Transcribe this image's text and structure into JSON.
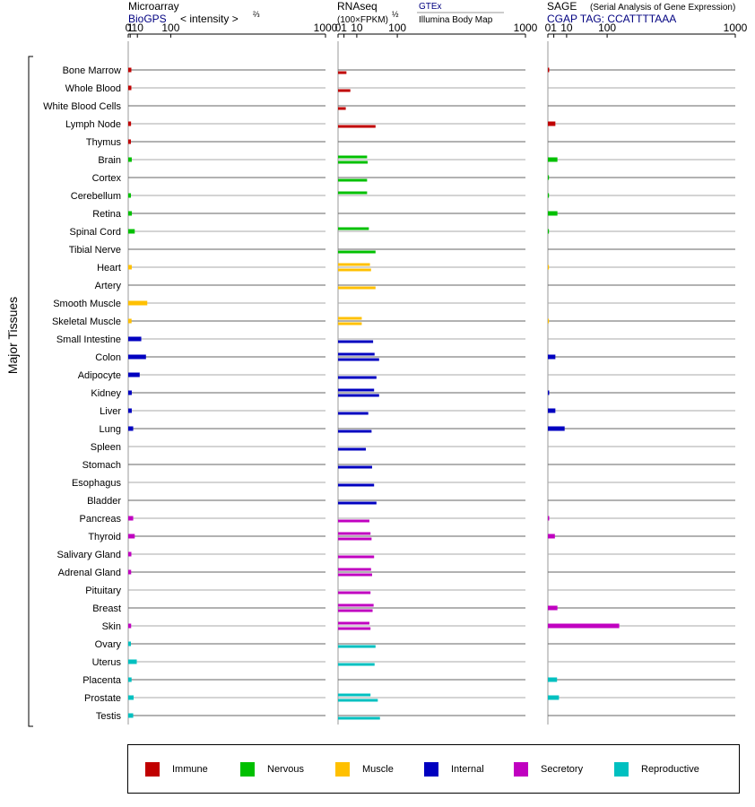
{
  "headers": {
    "micro_title": "Microarray",
    "micro_src": "BioGPS",
    "micro_units": "< intensity >",
    "micro_exp": "⅔",
    "rna_title": "RNAseq",
    "rna_units": "(100×FPKM)",
    "rna_exp": "½",
    "rna_src1": "GTEx",
    "rna_src2": "Illumina Body Map",
    "sage_title": "SAGE",
    "sage_sub": "(Serial Analysis of Gene Expression)",
    "sage_tag": "CGAP TAG: CCATTTTAAA"
  },
  "colors": {
    "Immune": "#c00000",
    "Nervous": "#00c000",
    "Muscle": "#ffc000",
    "Internal": "#0000c0",
    "Secretory": "#c000c0",
    "Reproductive": "#00c0c0",
    "title_blue": "#000080"
  },
  "chart_data": {
    "type": "bar",
    "y_axis_label": "Major Tissues",
    "categories": [
      "Bone Marrow",
      "Whole Blood",
      "White Blood Cells",
      "Lymph Node",
      "Thymus",
      "Brain",
      "Cortex",
      "Cerebellum",
      "Retina",
      "Spinal Cord",
      "Tibial Nerve",
      "Heart",
      "Artery",
      "Smooth Muscle",
      "Skeletal Muscle",
      "Small Intestine",
      "Colon",
      "Adipocyte",
      "Kidney",
      "Liver",
      "Lung",
      "Spleen",
      "Stomach",
      "Esophagus",
      "Bladder",
      "Pancreas",
      "Thyroid",
      "Salivary Gland",
      "Adrenal Gland",
      "Pituitary",
      "Breast",
      "Skin",
      "Ovary",
      "Uterus",
      "Placenta",
      "Prostate",
      "Testis"
    ],
    "groups": [
      "Immune",
      "Immune",
      "Immune",
      "Immune",
      "Immune",
      "Nervous",
      "Nervous",
      "Nervous",
      "Nervous",
      "Nervous",
      "Nervous",
      "Muscle",
      "Muscle",
      "Muscle",
      "Muscle",
      "Internal",
      "Internal",
      "Internal",
      "Internal",
      "Internal",
      "Internal",
      "Internal",
      "Internal",
      "Internal",
      "Internal",
      "Secretory",
      "Secretory",
      "Secretory",
      "Secretory",
      "Secretory",
      "Secretory",
      "Secretory",
      "Reproductive",
      "Reproductive",
      "Reproductive",
      "Reproductive",
      "Reproductive"
    ],
    "axis_ticks": [
      "0",
      "1",
      "10",
      "100",
      "1000"
    ],
    "microarray": [
      2,
      2,
      null,
      1.7,
      1.6,
      2.4,
      null,
      1.6,
      2.5,
      6,
      null,
      2.4,
      null,
      30,
      2.2,
      17,
      27,
      14,
      2.4,
      2.4,
      4,
      null,
      null,
      null,
      null,
      4,
      6,
      2,
      1.8,
      null,
      null,
      1.8,
      1.6,
      9,
      2.2,
      4.5,
      4
    ],
    "gtex": [
      null,
      null,
      null,
      null,
      null,
      24,
      null,
      24,
      null,
      27,
      null,
      29,
      null,
      null,
      16,
      null,
      38,
      null,
      37,
      null,
      null,
      null,
      null,
      null,
      null,
      null,
      30,
      null,
      31,
      null,
      36,
      28,
      null,
      null,
      null,
      30,
      null
    ],
    "illumina": [
      2,
      4.3,
      1.7,
      40,
      null,
      25,
      24,
      null,
      null,
      null,
      40,
      31,
      40,
      null,
      16,
      35,
      48,
      42,
      48,
      26,
      32,
      22,
      33,
      37,
      42,
      28,
      32,
      37,
      33,
      30,
      34,
      30,
      40,
      38,
      null,
      45,
      50
    ],
    "sage": [
      0.05,
      null,
      null,
      1.6,
      null,
      2.6,
      0.03,
      0.03,
      2.6,
      0.03,
      null,
      0.01,
      null,
      null,
      0.01,
      null,
      1.6,
      null,
      0.05,
      1.6,
      8,
      null,
      null,
      null,
      null,
      0.05,
      1.4,
      null,
      null,
      null,
      2.6,
      145,
      null,
      null,
      2.4,
      3.5,
      null
    ]
  },
  "legend": [
    {
      "label": "Immune",
      "color": "#c00000"
    },
    {
      "label": "Nervous",
      "color": "#00c000"
    },
    {
      "label": "Muscle",
      "color": "#ffc000"
    },
    {
      "label": "Internal",
      "color": "#0000c0"
    },
    {
      "label": "Secretory",
      "color": "#c000c0"
    },
    {
      "label": "Reproductive",
      "color": "#00c0c0"
    }
  ]
}
